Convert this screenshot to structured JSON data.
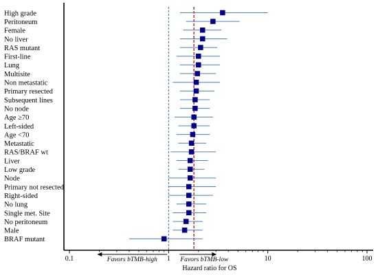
{
  "chart_data": {
    "type": "scatter",
    "subtype": "forest-plot",
    "xscale": "log",
    "xlim": [
      0.1,
      100
    ],
    "xticks": [
      "0.1",
      "1",
      "10",
      "100"
    ],
    "xlabel": "Hazard ratio for OS",
    "reference_line": 1,
    "overall_estimate_line": 1.8,
    "favors_left": "Favors bTMB-high",
    "favors_right": "Favors bTMB-low",
    "point_color": "#00008b",
    "ci_color": "#4a7fc1",
    "ref_line_color": "#3a6ea5",
    "overall_line_color": "#a52a2a",
    "categories": [
      "High grade",
      "Peritoneum",
      "Female",
      "No liver",
      "RAS mutant",
      "First-line",
      "Lung",
      "Multisite",
      "Non metastatic",
      "Primary resected",
      "Subsequent lines",
      "No node",
      "Age ≥70",
      "Left-sided",
      "Age <70",
      "Metastatic",
      "RAS/BRAF wt",
      "Liver",
      "Low grade",
      "Node",
      "Primary not resected",
      "Right-sided",
      "No lung",
      "Single met. Site",
      "No peritoneum",
      "Male",
      "BRAF mutant"
    ],
    "hr": [
      3.5,
      2.8,
      2.2,
      2.2,
      2.1,
      2.0,
      2.0,
      1.95,
      1.9,
      1.9,
      1.85,
      1.85,
      1.8,
      1.8,
      1.75,
      1.7,
      1.7,
      1.65,
      1.65,
      1.65,
      1.6,
      1.6,
      1.6,
      1.6,
      1.5,
      1.45,
      0.9
    ],
    "lower": [
      1.3,
      1.5,
      1.4,
      1.3,
      1.3,
      1.2,
      1.3,
      1.3,
      1.1,
      1.3,
      1.3,
      1.3,
      1.15,
      1.25,
      1.2,
      1.25,
      1.05,
      1.2,
      1.25,
      1.0,
      1.0,
      1.0,
      1.2,
      1.1,
      1.1,
      1.1,
      0.4
    ],
    "upper": [
      10.0,
      5.2,
      3.4,
      3.9,
      3.1,
      3.3,
      3.3,
      3.0,
      3.3,
      2.9,
      2.6,
      2.6,
      2.8,
      2.6,
      2.6,
      2.4,
      3.0,
      2.5,
      2.3,
      3.0,
      3.0,
      2.8,
      2.4,
      2.4,
      2.2,
      2.2,
      2.2
    ]
  }
}
